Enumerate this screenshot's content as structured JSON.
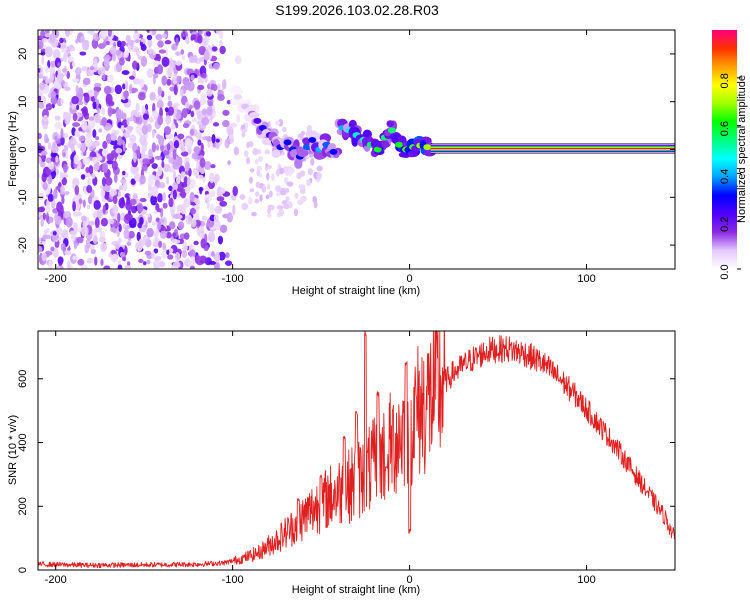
{
  "title": "S199.2026.103.02.28.R03",
  "chart_data": [
    {
      "type": "heatmap",
      "name": "spectrogram",
      "xlabel": "Height of straight line (km)",
      "ylabel": "Frequency (Hz)",
      "xlim": [
        -210,
        150
      ],
      "ylim": [
        -25,
        25
      ],
      "x_ticks": [
        -200,
        -100,
        0,
        100
      ],
      "y_ticks": [
        -20,
        -10,
        0,
        10,
        20
      ],
      "noise_region_km": [
        -210,
        -95
      ],
      "ridge": [
        {
          "x": -97,
          "f": 11,
          "a": 0.05
        },
        {
          "x": -93,
          "f": 9,
          "a": 0.08
        },
        {
          "x": -89,
          "f": 7.5,
          "a": 0.12
        },
        {
          "x": -86,
          "f": 6,
          "a": 0.22
        },
        {
          "x": -83,
          "f": 4.5,
          "a": 0.28
        },
        {
          "x": -79,
          "f": 3,
          "a": 0.25
        },
        {
          "x": -76,
          "f": 1.5,
          "a": 0.3
        },
        {
          "x": -73,
          "f": 0.5,
          "a": 0.28
        },
        {
          "x": -69,
          "f": 1.5,
          "a": 0.3
        },
        {
          "x": -66,
          "f": 0,
          "a": 0.32
        },
        {
          "x": -62,
          "f": -1.5,
          "a": 0.3
        },
        {
          "x": -58,
          "f": 0.5,
          "a": 0.35
        },
        {
          "x": -55,
          "f": 2,
          "a": 0.3
        },
        {
          "x": -51,
          "f": 0,
          "a": 0.4
        },
        {
          "x": -47,
          "f": 1,
          "a": 0.35
        },
        {
          "x": -43,
          "f": -0.5,
          "a": 0.3
        },
        {
          "x": -38,
          "f": 4.5,
          "a": 0.4
        },
        {
          "x": -34,
          "f": 4,
          "a": 0.45
        },
        {
          "x": -30,
          "f": 3,
          "a": 0.5
        },
        {
          "x": -26,
          "f": 2,
          "a": 0.5
        },
        {
          "x": -22,
          "f": 1,
          "a": 0.55
        },
        {
          "x": -18,
          "f": 0,
          "a": 0.6
        },
        {
          "x": -14,
          "f": 2.5,
          "a": 0.55
        },
        {
          "x": -10,
          "f": 4,
          "a": 0.55
        },
        {
          "x": -6,
          "f": 1,
          "a": 0.6
        },
        {
          "x": -2,
          "f": 0,
          "a": 0.65
        },
        {
          "x": 2,
          "f": 0.5,
          "a": 0.65
        },
        {
          "x": 6,
          "f": 0.8,
          "a": 0.7
        },
        {
          "x": 10,
          "f": 0.5,
          "a": 0.7
        }
      ],
      "tone": {
        "x_from": 12,
        "x_to": 150,
        "f": 0.2,
        "peak_amplitude": 0.98
      },
      "colorbar": {
        "label": "Normalized spectral amplitude",
        "ticks": [
          0.0,
          0.2,
          0.4,
          0.6,
          0.8
        ],
        "range": [
          0,
          1
        ],
        "colors": [
          "#ffffff",
          "#e4c8ff",
          "#8a2be2",
          "#5000ff",
          "#0000ff",
          "#00a0ff",
          "#00ffff",
          "#00ff80",
          "#00ff00",
          "#a0ff00",
          "#ffff00",
          "#ffa000",
          "#ff3000",
          "#ff0080"
        ]
      }
    },
    {
      "type": "line",
      "name": "snr",
      "xlabel": "Height of straight line (km)",
      "ylabel": "SNR (10 * v/v)",
      "xlim": [
        -210,
        150
      ],
      "ylim": [
        0,
        750
      ],
      "x_ticks": [
        -200,
        -100,
        0,
        100
      ],
      "y_ticks": [
        0,
        200,
        400,
        600
      ],
      "color": "#e02020",
      "envelope": [
        [
          -210,
          18
        ],
        [
          -180,
          15
        ],
        [
          -150,
          16
        ],
        [
          -120,
          18
        ],
        [
          -105,
          22
        ],
        [
          -95,
          35
        ],
        [
          -85,
          55
        ],
        [
          -75,
          95
        ],
        [
          -65,
          140
        ],
        [
          -55,
          190
        ],
        [
          -45,
          230
        ],
        [
          -35,
          260
        ],
        [
          -25,
          300
        ],
        [
          -15,
          360
        ],
        [
          -5,
          430
        ],
        [
          5,
          500
        ],
        [
          15,
          560
        ],
        [
          25,
          620
        ],
        [
          35,
          660
        ],
        [
          45,
          690
        ],
        [
          55,
          695
        ],
        [
          65,
          680
        ],
        [
          75,
          650
        ],
        [
          85,
          600
        ],
        [
          95,
          540
        ],
        [
          105,
          470
        ],
        [
          115,
          400
        ],
        [
          125,
          320
        ],
        [
          135,
          240
        ],
        [
          145,
          160
        ],
        [
          150,
          95
        ]
      ],
      "spikes": [
        {
          "x": -63,
          "y": 230
        },
        {
          "x": -50,
          "y": 300
        },
        {
          "x": -37,
          "y": 420
        },
        {
          "x": -30,
          "y": 500
        },
        {
          "x": -25,
          "y": 750
        },
        {
          "x": -18,
          "y": 560
        },
        {
          "x": -13,
          "y": 330
        },
        {
          "x": -2,
          "y": 655
        },
        {
          "x": 0,
          "y": 130
        }
      ]
    }
  ]
}
